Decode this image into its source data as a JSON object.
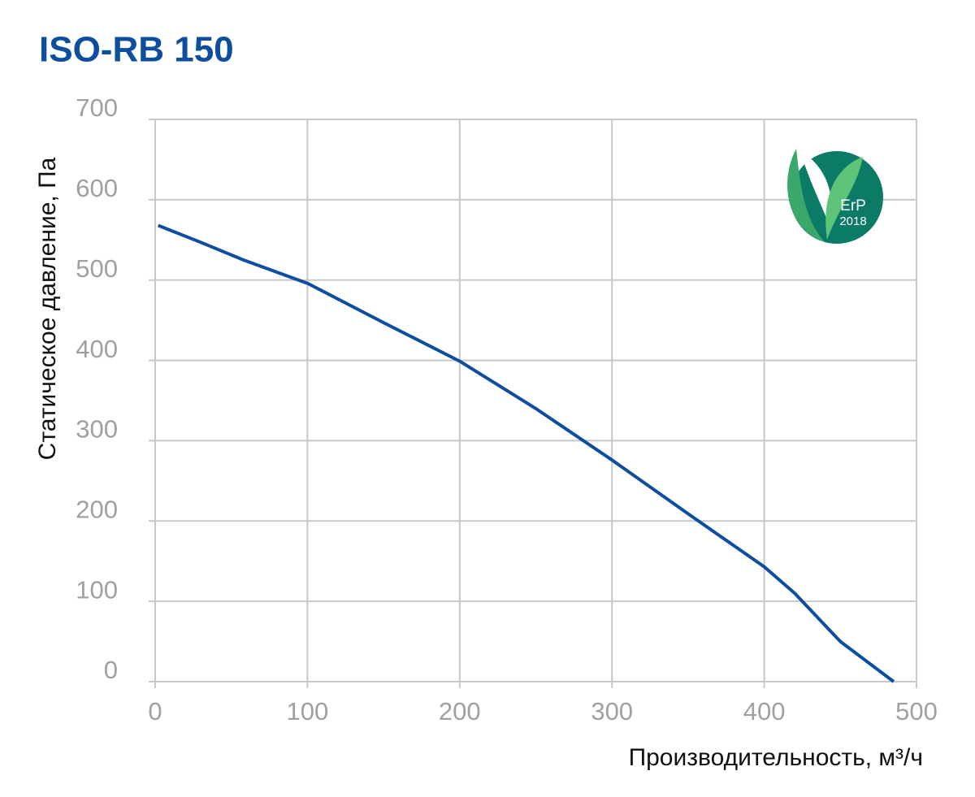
{
  "chart_data": {
    "type": "line",
    "title": "ISO-RB 150",
    "xlabel": "Производительность, м³/ч",
    "ylabel": "Статическое давление, Па",
    "x": [
      2,
      30,
      58,
      100,
      150,
      200,
      250,
      300,
      350,
      400,
      420,
      450,
      485
    ],
    "values": [
      568,
      547,
      525,
      496,
      447,
      399,
      340,
      276,
      209,
      143,
      110,
      50,
      0
    ],
    "color": "#0d4ea0",
    "xlim": [
      0,
      500
    ],
    "ylim": [
      0,
      700
    ],
    "xticks": [
      0,
      100,
      200,
      300,
      400,
      500
    ],
    "yticks": [
      0,
      100,
      200,
      300,
      400,
      500,
      600,
      700
    ],
    "grid": true,
    "badge": {
      "label": "ErP",
      "year": "2018"
    }
  }
}
